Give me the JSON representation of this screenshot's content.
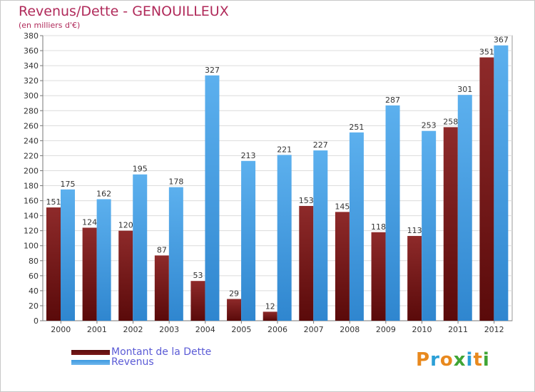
{
  "chart_data": {
    "type": "bar",
    "title": "Revenus/Dette - GENOUILLEUX",
    "subtitle": "(en milliers d'€)",
    "categories": [
      "2000",
      "2001",
      "2002",
      "2003",
      "2004",
      "2005",
      "2006",
      "2007",
      "2008",
      "2009",
      "2010",
      "2011",
      "2012"
    ],
    "series": [
      {
        "name": "Montant de la Dette",
        "color": "#7a1818",
        "values": [
          151,
          124,
          120,
          87,
          53,
          29,
          12,
          153,
          145,
          118,
          113,
          258,
          351
        ]
      },
      {
        "name": "Revenus",
        "color": "#3e9ae0",
        "values": [
          175,
          162,
          195,
          178,
          327,
          213,
          221,
          227,
          251,
          287,
          253,
          301,
          367
        ]
      }
    ],
    "ylim": [
      0,
      380
    ],
    "ytick_step": 20,
    "grid": true,
    "legend": "bottom-left"
  },
  "logo": {
    "letters": [
      "P",
      "r",
      "o",
      "x",
      "i",
      "t",
      "i"
    ],
    "colors": [
      "#e8891e",
      "#2b9fd6",
      "#e8891e",
      "#3fa535",
      "#2b9fd6",
      "#e8891e",
      "#3fa535"
    ]
  }
}
